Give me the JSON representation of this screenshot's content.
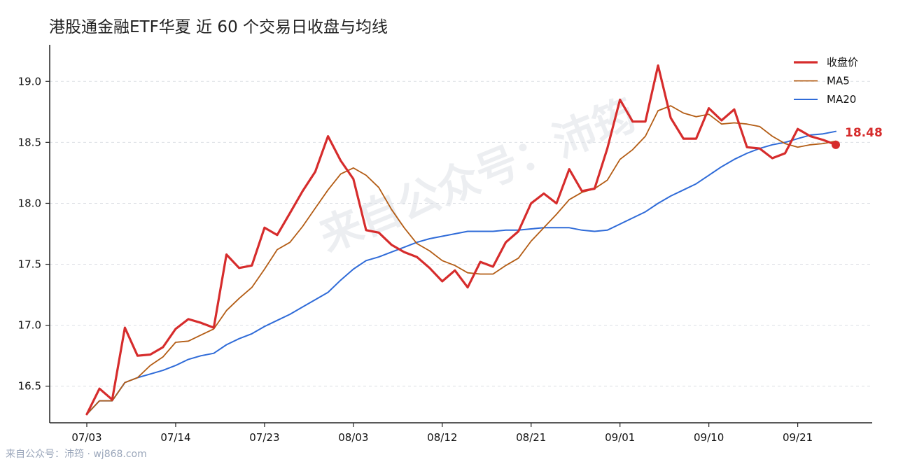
{
  "chart_data": {
    "type": "line",
    "title": "港股通金融ETF华夏 近 60 个交易日收盘与均线",
    "xlabel": "",
    "ylabel": "",
    "x_tick_labels": [
      "07/03",
      "07/14",
      "07/23",
      "08/03",
      "08/12",
      "08/21",
      "09/01",
      "09/10",
      "09/21"
    ],
    "x_tick_index": [
      0,
      7,
      14,
      21,
      28,
      35,
      42,
      49,
      56
    ],
    "ylim": [
      16.2,
      19.3
    ],
    "y_ticks": [
      16.5,
      17.0,
      17.5,
      18.0,
      18.5,
      19.0
    ],
    "y_tick_labels": [
      "16.5",
      "17.0",
      "17.5",
      "18.0",
      "18.5",
      "19.0"
    ],
    "grid": "horizontal dashed",
    "legend_position": "top-right",
    "last_value_label": "18.48",
    "series": [
      {
        "name": "收盘价",
        "color": "#d62c2c",
        "values": [
          16.27,
          16.48,
          16.39,
          16.98,
          16.75,
          16.76,
          16.82,
          16.97,
          17.05,
          17.02,
          16.98,
          17.58,
          17.47,
          17.49,
          17.8,
          17.74,
          17.92,
          18.1,
          18.26,
          18.55,
          18.35,
          18.2,
          17.78,
          17.76,
          17.66,
          17.6,
          17.56,
          17.47,
          17.36,
          17.45,
          17.31,
          17.52,
          17.48,
          17.68,
          17.77,
          18.0,
          18.08,
          18.0,
          18.28,
          18.1,
          18.12,
          18.45,
          18.85,
          18.67,
          18.67,
          19.13,
          18.7,
          18.53,
          18.53,
          18.78,
          18.68,
          18.77,
          18.46,
          18.45,
          18.37,
          18.41,
          18.61,
          18.55,
          18.52,
          18.48
        ]
      },
      {
        "name": "MA5",
        "color": "#b35c14",
        "values": [
          16.27,
          16.38,
          16.38,
          16.53,
          16.57,
          16.67,
          16.74,
          16.86,
          16.87,
          16.92,
          16.97,
          17.12,
          17.22,
          17.31,
          17.46,
          17.62,
          17.68,
          17.81,
          17.96,
          18.11,
          18.24,
          18.29,
          18.23,
          18.13,
          17.95,
          17.8,
          17.67,
          17.61,
          17.53,
          17.49,
          17.43,
          17.42,
          17.42,
          17.49,
          17.55,
          17.69,
          17.8,
          17.91,
          18.03,
          18.09,
          18.12,
          18.19,
          18.36,
          18.44,
          18.55,
          18.76,
          18.8,
          18.74,
          18.71,
          18.73,
          18.65,
          18.66,
          18.65,
          18.63,
          18.55,
          18.49,
          18.46,
          18.48,
          18.49,
          18.51
        ]
      },
      {
        "name": "MA20",
        "color": "#2f6bd8",
        "values": [
          16.27,
          16.38,
          16.38,
          16.53,
          16.57,
          16.6,
          16.63,
          16.67,
          16.72,
          16.75,
          16.77,
          16.84,
          16.89,
          16.93,
          16.99,
          17.04,
          17.09,
          17.15,
          17.21,
          17.27,
          17.37,
          17.46,
          17.53,
          17.56,
          17.6,
          17.64,
          17.68,
          17.71,
          17.73,
          17.75,
          17.77,
          17.77,
          17.77,
          17.78,
          17.78,
          17.79,
          17.8,
          17.8,
          17.8,
          17.78,
          17.77,
          17.78,
          17.83,
          17.88,
          17.93,
          18.0,
          18.06,
          18.11,
          18.16,
          18.23,
          18.3,
          18.36,
          18.41,
          18.45,
          18.48,
          18.5,
          18.53,
          18.56,
          18.57,
          18.59
        ]
      }
    ]
  },
  "watermark": "来自公众号：沛筠",
  "footer": "来自公众号：沛筠 · wj868.com"
}
